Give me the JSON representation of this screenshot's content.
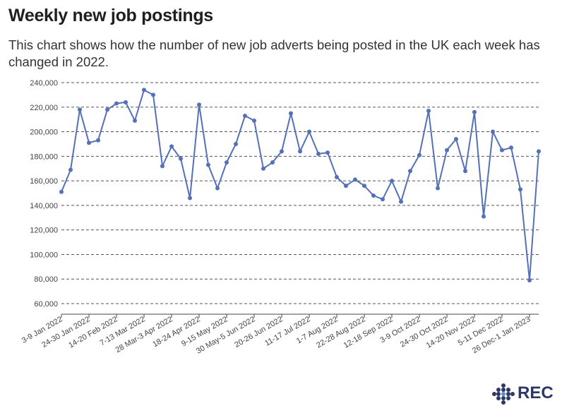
{
  "title": "Weekly new job postings",
  "subtitle": "This chart shows how the number of new job adverts being posted in the UK each week has changed in 2022.",
  "logo": {
    "text": "REC",
    "icon": "rec-logo-icon"
  },
  "colors": {
    "line": "#5470b8",
    "grid": "#555555",
    "text": "#444444"
  },
  "chart_data": {
    "type": "line",
    "title": "Weekly new job postings",
    "xlabel": "",
    "ylabel": "",
    "ylim": [
      60000,
      240000
    ],
    "yticks": [
      60000,
      80000,
      100000,
      120000,
      140000,
      160000,
      180000,
      200000,
      220000,
      240000
    ],
    "ytick_labels": [
      "60,000",
      "80,000",
      "100,000",
      "120,000",
      "140,000",
      "160,000",
      "180,000",
      "200,000",
      "220,000",
      "240,000"
    ],
    "grid": "horizontal dashed",
    "xtick_labels": [
      {
        "index": 0,
        "label": "3-9 Jan 2022"
      },
      {
        "index": 3,
        "label": "24-30 Jan 2022"
      },
      {
        "index": 6,
        "label": "14-20 Feb 2022"
      },
      {
        "index": 9,
        "label": "7-13 Mar 2022"
      },
      {
        "index": 12,
        "label": "28 Mar-3 Apr 2022"
      },
      {
        "index": 15,
        "label": "18-24 Apr 2022"
      },
      {
        "index": 18,
        "label": "9-15 May 2022"
      },
      {
        "index": 21,
        "label": "30 May-5 Jun 2022"
      },
      {
        "index": 24,
        "label": "20-26 Jun 2022"
      },
      {
        "index": 27,
        "label": "11-17 Jul 2022"
      },
      {
        "index": 30,
        "label": "1-7 Aug 2022"
      },
      {
        "index": 33,
        "label": "22-28 Aug 2022"
      },
      {
        "index": 36,
        "label": "12-18 Sep 2022"
      },
      {
        "index": 39,
        "label": "3-9 Oct 2022"
      },
      {
        "index": 42,
        "label": "24-30 Oct 2022"
      },
      {
        "index": 45,
        "label": "14-20 Nov 2022"
      },
      {
        "index": 48,
        "label": "5-11 Dec 2022"
      },
      {
        "index": 51,
        "label": "26 Dec-1 Jan 2023"
      }
    ],
    "series": [
      {
        "values": [
          151000,
          169000,
          218000,
          191000,
          193000,
          218000,
          223000,
          224000,
          209000,
          234000,
          230000,
          172000,
          188000,
          178000,
          146000,
          222000,
          173000,
          154000,
          175000,
          190000,
          213000,
          209000,
          170000,
          175000,
          184000,
          215000,
          184000,
          200000,
          182000,
          183000,
          163000,
          156000,
          161000,
          156000,
          148000,
          145000,
          160000,
          143000,
          168000,
          181000,
          217000,
          154000,
          185000,
          194000,
          168000,
          216000,
          131000,
          200000,
          185000,
          187000,
          153000,
          79000,
          184000
        ]
      }
    ]
  }
}
